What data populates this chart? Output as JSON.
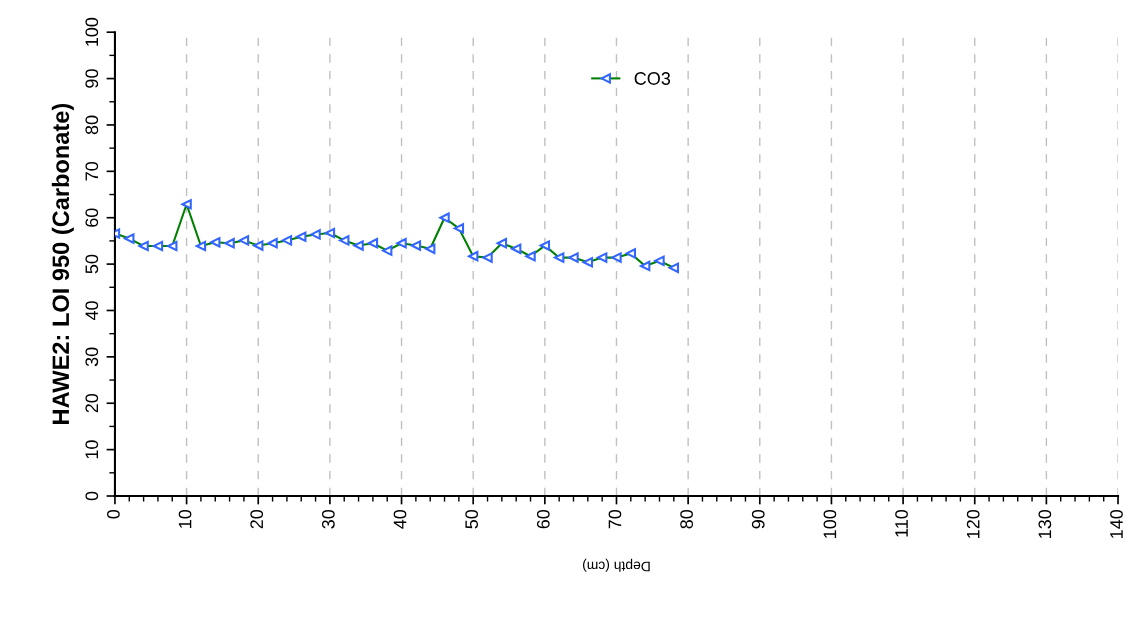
{
  "chart_data": {
    "type": "line",
    "ylabel": "HAWE2: LOI 950 (Carbonate)",
    "xlabel": "Depth (cm)",
    "x": [
      0,
      2,
      4,
      6,
      8,
      10,
      12,
      14,
      16,
      18,
      20,
      22,
      24,
      26,
      28,
      30,
      32,
      34,
      36,
      38,
      40,
      42,
      44,
      46,
      48,
      50,
      52,
      54,
      56,
      58,
      60,
      62,
      64,
      66,
      68,
      70,
      72,
      74,
      76,
      78
    ],
    "series": [
      {
        "name": "CO3",
        "color": "#008000",
        "values": [
          56.6,
          55.5,
          53.9,
          53.9,
          53.9,
          62.9,
          53.9,
          54.7,
          54.5,
          55.1,
          54.0,
          54.5,
          55.1,
          55.9,
          56.4,
          56.7,
          55.1,
          54.0,
          54.5,
          52.9,
          54.5,
          54.0,
          53.3,
          60.0,
          57.7,
          51.7,
          51.4,
          54.5,
          53.3,
          51.7,
          54.0,
          51.4,
          51.4,
          50.4,
          51.4,
          51.4,
          52.3,
          49.6,
          50.7,
          49.2
        ]
      }
    ],
    "xlim": [
      0,
      140
    ],
    "xticks": [
      0,
      10,
      20,
      30,
      40,
      50,
      60,
      70,
      80,
      90,
      100,
      110,
      120,
      130,
      140
    ],
    "ylim": [
      0,
      100
    ],
    "yticks": [
      0,
      10,
      20,
      30,
      40,
      50,
      60,
      70,
      80,
      90,
      100
    ],
    "grid": "x",
    "legend": "top",
    "marker": "triangle",
    "line_style": "solid"
  }
}
